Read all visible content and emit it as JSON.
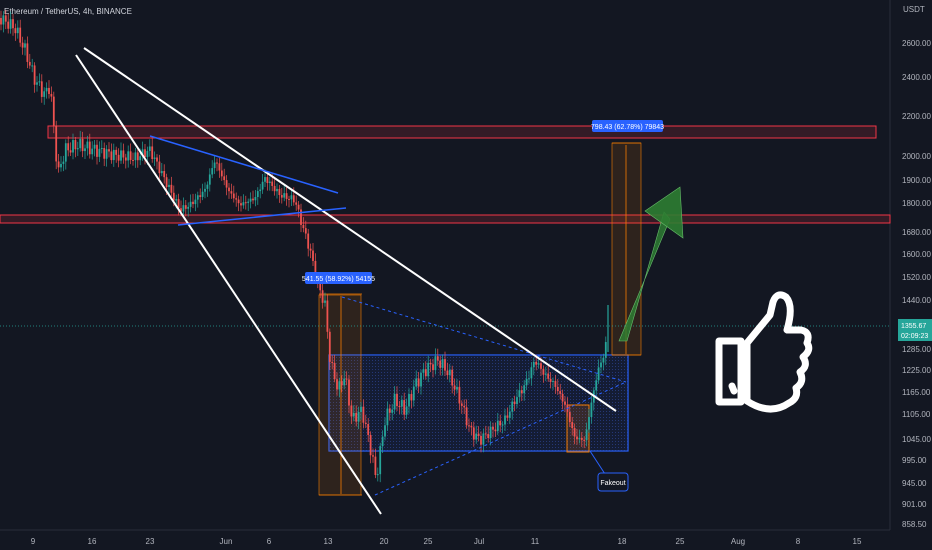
{
  "chart_data": {
    "type": "candlestick",
    "symbol": "Ethereum / TetherUS, 4h, BINANCE",
    "currency": "USDT",
    "price_ticks": [
      "2600.00",
      "2400.00",
      "2200.00",
      "2000.00",
      "1900.00",
      "1800.00",
      "1680.00",
      "1600.00",
      "1520.00",
      "1440.00",
      "1285.00",
      "1225.00",
      "1165.00",
      "1105.00",
      "1045.00",
      "995.00",
      "945.00",
      "901.00",
      "858.50"
    ],
    "date_ticks": [
      "9",
      "16",
      "23",
      "Jun",
      "6",
      "13",
      "20",
      "25",
      "Jul",
      "11",
      "18",
      "25",
      "Aug",
      "8",
      "15"
    ],
    "last_price": "1355.67",
    "countdown": "02:09:23",
    "measure_top": "798.43 (62.78%) 79843",
    "measure_left": "541.55 (58.92%) 54155",
    "callout": "Fakeout",
    "colors": {
      "background": "#131722",
      "up": "#26a69a",
      "down": "#ef5350",
      "resistance": "#f23645",
      "range_box": "#2962ff",
      "projection": "#f57c00",
      "arrow": "#2e7d32"
    },
    "icons": [
      "thumbs-up-icon",
      "up-arrow-icon"
    ]
  }
}
